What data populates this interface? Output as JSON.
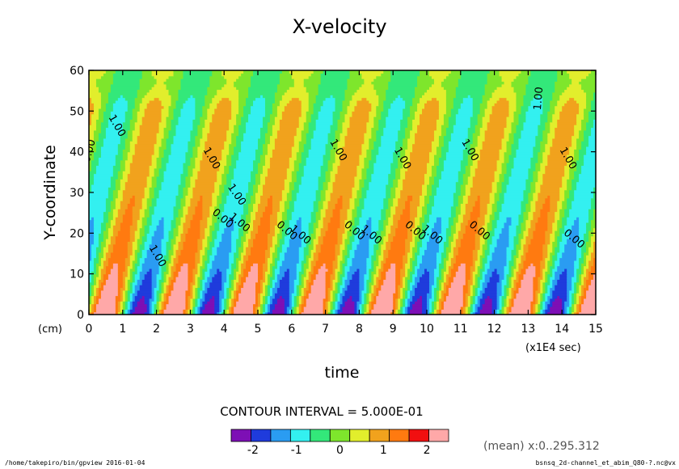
{
  "title": "X-velocity",
  "chart_data": {
    "type": "filled-contour",
    "title": "X-velocity",
    "xlabel": "time",
    "xunits": "(x1E4 sec)",
    "ylabel": "Y-coordinate",
    "yunits": "(cm)",
    "xlim": [
      0,
      15
    ],
    "ylim": [
      0,
      60
    ],
    "xticks": [
      "0",
      "1",
      "2",
      "3",
      "4",
      "5",
      "6",
      "7",
      "8",
      "9",
      "10",
      "11",
      "12",
      "13",
      "14",
      "15"
    ],
    "yticks": [
      "0",
      "10",
      "20",
      "30",
      "40",
      "50",
      "60"
    ],
    "contour_interval": "CONTOUR INTERVAL = 5.000E-01",
    "colorbar": {
      "levels": [
        -2.5,
        -2,
        -1.5,
        -1,
        -0.5,
        0,
        0.5,
        1,
        1.5,
        2,
        2.5
      ],
      "labels": [
        {
          "text": "-2",
          "at": -2
        },
        {
          "text": "-1",
          "at": -1
        },
        {
          "text": "0",
          "at": 0
        },
        {
          "text": "1",
          "at": 1
        },
        {
          "text": "2",
          "at": 2
        }
      ],
      "colors": [
        "#7d0fb5",
        "#1f3bdc",
        "#2a9cf2",
        "#33f0f0",
        "#33e87a",
        "#7ee62c",
        "#e2ee2c",
        "#f1a21d",
        "#ff7a10",
        "#f10f10",
        "#ffa8a8"
      ]
    },
    "contour_labels": [
      {
        "text": "0.00",
        "x": 0.1,
        "y": 40,
        "rotate": -75
      },
      {
        "text": "1.00",
        "x": 0.75,
        "y": 46,
        "rotate": 60
      },
      {
        "text": "1.00",
        "x": 1.95,
        "y": 14,
        "rotate": 60
      },
      {
        "text": "1.00",
        "x": 3.55,
        "y": 38,
        "rotate": 60
      },
      {
        "text": "1.00",
        "x": 4.3,
        "y": 29,
        "rotate": 55
      },
      {
        "text": "0.00",
        "x": 3.9,
        "y": 23,
        "rotate": 40
      },
      {
        "text": "1.00",
        "x": 4.4,
        "y": 22,
        "rotate": 40
      },
      {
        "text": "0.00",
        "x": 5.8,
        "y": 20,
        "rotate": 40
      },
      {
        "text": "1.00",
        "x": 6.2,
        "y": 19,
        "rotate": 40
      },
      {
        "text": "1.00",
        "x": 7.3,
        "y": 40,
        "rotate": 60
      },
      {
        "text": "0.00",
        "x": 7.8,
        "y": 20,
        "rotate": 40
      },
      {
        "text": "1.00",
        "x": 8.3,
        "y": 19,
        "rotate": 40
      },
      {
        "text": "1.00",
        "x": 9.2,
        "y": 38,
        "rotate": 60
      },
      {
        "text": "0.00",
        "x": 9.6,
        "y": 20,
        "rotate": 40
      },
      {
        "text": "1.00",
        "x": 10.1,
        "y": 19,
        "rotate": 40
      },
      {
        "text": "1.00",
        "x": 11.2,
        "y": 40,
        "rotate": 60
      },
      {
        "text": "0.00",
        "x": 11.5,
        "y": 20,
        "rotate": 40
      },
      {
        "text": "1.00",
        "x": 13.4,
        "y": 53,
        "rotate": -85
      },
      {
        "text": "1.00",
        "x": 14.1,
        "y": 38,
        "rotate": 60
      },
      {
        "text": "0.00",
        "x": 14.3,
        "y": 18,
        "rotate": 40
      }
    ]
  },
  "mean_note": "(mean) x:0..295.312",
  "footer_left": "/home/takepiro/bin/gpview  2016-01-04",
  "footer_right": "bsnsq_2d-channel_et_abim_Q80-?.nc@vx"
}
